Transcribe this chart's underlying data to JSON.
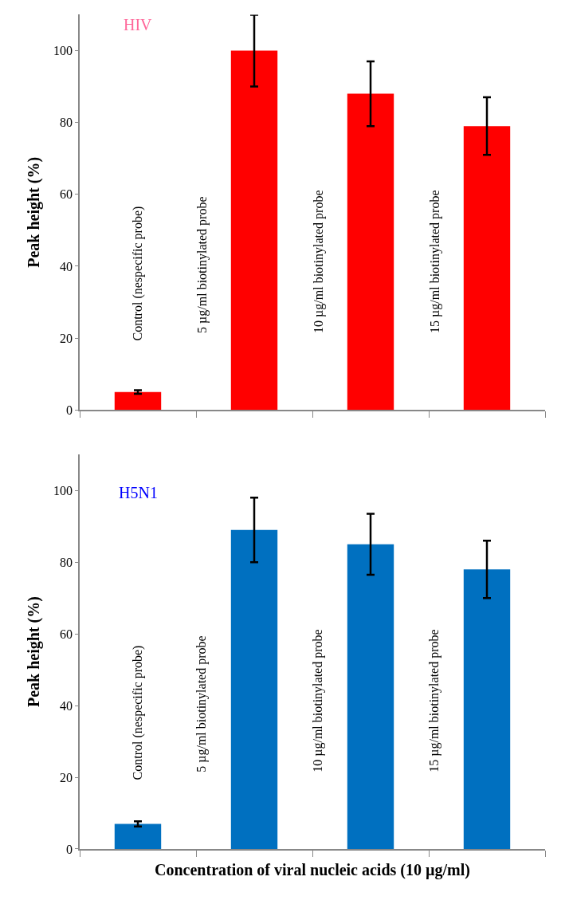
{
  "chart_data": [
    {
      "type": "bar",
      "title": "HIV",
      "ylabel": "Peak height (%)",
      "categories": [
        "Control (nespecific probe)",
        "5 µg/ml biotinylated probe",
        "10 µg/ml biotinylated probe",
        "15 µg/ml biotinylated probe"
      ],
      "series": [
        {
          "color": "#ff0000",
          "values": [
            5,
            100,
            88,
            79
          ],
          "errors": [
            0.5,
            10,
            9,
            8
          ]
        }
      ],
      "ylim": [
        0,
        110
      ],
      "yticks": [
        0,
        20,
        40,
        60,
        80,
        100
      ],
      "tick_labels": "y",
      "grid": false
    },
    {
      "type": "bar",
      "title": "H5N1",
      "ylabel": "Peak height (%)",
      "xlabel": "Concentration of viral nucleic acids (10 µg/ml)",
      "categories": [
        "Control (nespecific probe)",
        "5 µg/ml biotinylated probe",
        "10 µg/ml biotinylated probe",
        "15 µg/ml biotinylated probe"
      ],
      "series": [
        {
          "color": "#0070c0",
          "values": [
            7,
            89,
            85,
            78
          ],
          "errors": [
            0.7,
            9,
            8.5,
            8
          ]
        }
      ],
      "ylim": [
        0,
        110
      ],
      "yticks": [
        0,
        20,
        40,
        60,
        80,
        100
      ],
      "tick_labels": "y",
      "grid": false
    }
  ]
}
